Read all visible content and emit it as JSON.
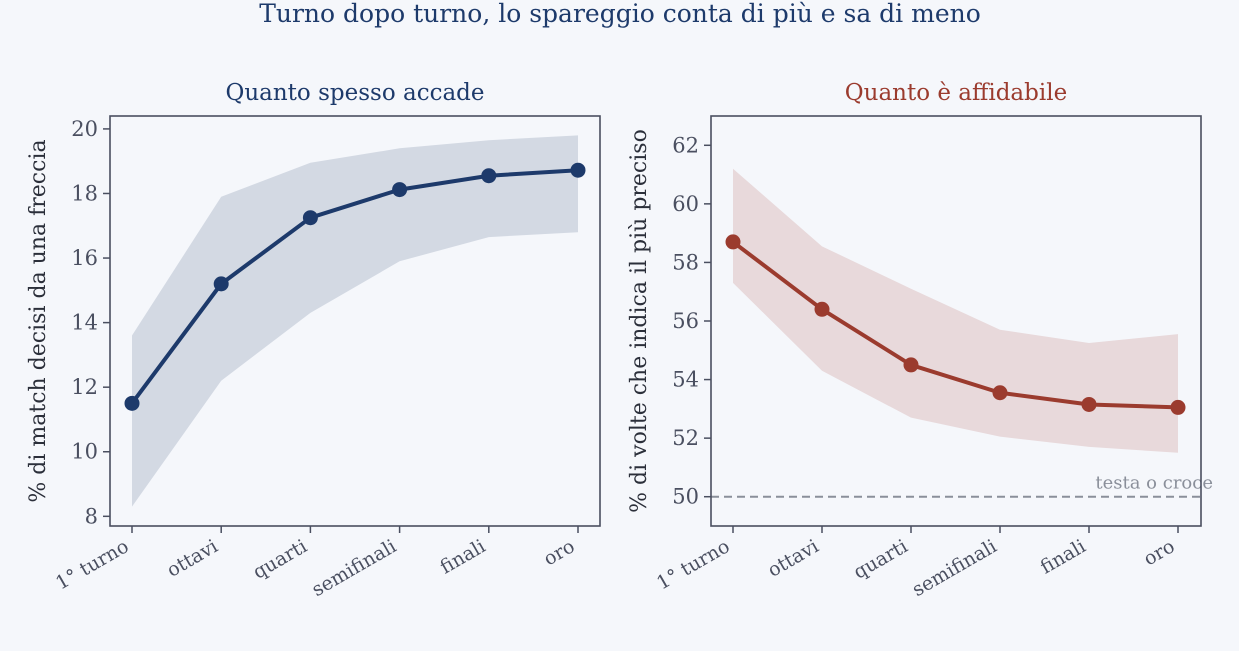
{
  "title": "Turno dopo turno, lo spareggio conta di più e sa di meno",
  "colors": {
    "background": "#f5f7fb",
    "left_series": "#1d3a6b",
    "left_band": "#d3d9e3",
    "right_series": "#9b3b2e",
    "right_band": "#e8d9db",
    "axis": "#4a4f60",
    "reference": "#8a8f9a"
  },
  "chart_data": [
    {
      "type": "line",
      "title": "Quanto spesso accade",
      "xlabel": "",
      "ylabel": "% di match decisi da una freccia",
      "categories": [
        "1° turno",
        "ottavi",
        "quarti",
        "semifinali",
        "finali",
        "oro"
      ],
      "values": [
        11.5,
        15.2,
        17.25,
        18.12,
        18.55,
        18.72
      ],
      "band_lower": [
        8.3,
        12.2,
        14.3,
        15.9,
        16.65,
        16.8
      ],
      "band_upper": [
        13.6,
        17.9,
        18.95,
        19.4,
        19.65,
        19.8
      ],
      "ylim": [
        7.7,
        20.4
      ],
      "yticks": [
        8,
        10,
        12,
        14,
        16,
        18,
        20
      ],
      "grid": false
    },
    {
      "type": "line",
      "title": "Quanto è affidabile",
      "xlabel": "",
      "ylabel": "% di volte che indica il più preciso",
      "categories": [
        "1° turno",
        "ottavi",
        "quarti",
        "semifinali",
        "finali",
        "oro"
      ],
      "values": [
        58.7,
        56.4,
        54.5,
        53.55,
        53.15,
        53.05
      ],
      "band_lower": [
        57.3,
        54.3,
        52.7,
        52.05,
        51.7,
        51.5
      ],
      "band_upper": [
        61.2,
        58.55,
        57.1,
        55.7,
        55.25,
        55.55
      ],
      "ylim": [
        49.0,
        63.0
      ],
      "yticks": [
        50,
        52,
        54,
        56,
        58,
        60,
        62
      ],
      "reference_line": {
        "y": 50,
        "label": "testa o croce"
      },
      "grid": false
    }
  ]
}
